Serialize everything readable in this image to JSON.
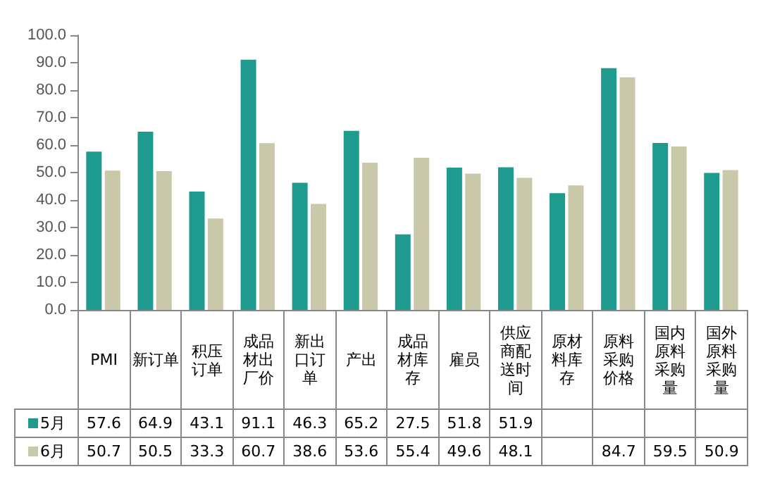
{
  "chart_data": {
    "type": "bar",
    "categories": [
      "PMI",
      "新订单",
      "积压订单",
      "成品材出厂价",
      "新出口订单",
      "产出",
      "成品材库存",
      "雇员",
      "供应商配送时间",
      "原材料库存",
      "原料采购价格",
      "国内原料采购量",
      "国外原料采购量"
    ],
    "series": [
      {
        "name": "5月",
        "color": "#1f9a8f",
        "values": [
          57.6,
          64.9,
          43.1,
          91.1,
          46.3,
          65.2,
          27.5,
          51.8,
          51.9,
          42.5,
          88.0,
          60.8,
          49.9
        ],
        "value_labels": [
          "57.6",
          "64.9",
          "43.1",
          "91.1",
          "46.3",
          "65.2",
          "27.5",
          "51.8",
          "51.9",
          null,
          null,
          null,
          null
        ]
      },
      {
        "name": "6月",
        "color": "#c9c9aa",
        "values": [
          50.7,
          50.5,
          33.3,
          60.7,
          38.6,
          53.6,
          55.4,
          49.6,
          48.1,
          45.3,
          84.7,
          59.5,
          50.9
        ],
        "value_labels": [
          "50.7",
          "50.5",
          "33.3",
          "60.7",
          "38.6",
          "53.6",
          "55.4",
          "49.6",
          "48.1",
          null,
          "84.7",
          "59.5",
          "50.9"
        ]
      }
    ],
    "ylim": [
      0,
      100
    ],
    "yticks": [
      {
        "value": 0,
        "label": "0.0"
      },
      {
        "value": 10,
        "label": "10.0"
      },
      {
        "value": 20,
        "label": "20.0"
      },
      {
        "value": 30,
        "label": "30.0"
      },
      {
        "value": 40,
        "label": "40.0"
      },
      {
        "value": 50,
        "label": "50.0"
      },
      {
        "value": 60,
        "label": "60.0"
      },
      {
        "value": 70,
        "label": "70.0"
      },
      {
        "value": 80,
        "label": "80.0"
      },
      {
        "value": 90,
        "label": "90.0"
      },
      {
        "value": 100,
        "label": "100.0"
      }
    ],
    "grid": false,
    "legend": "bottom left"
  }
}
